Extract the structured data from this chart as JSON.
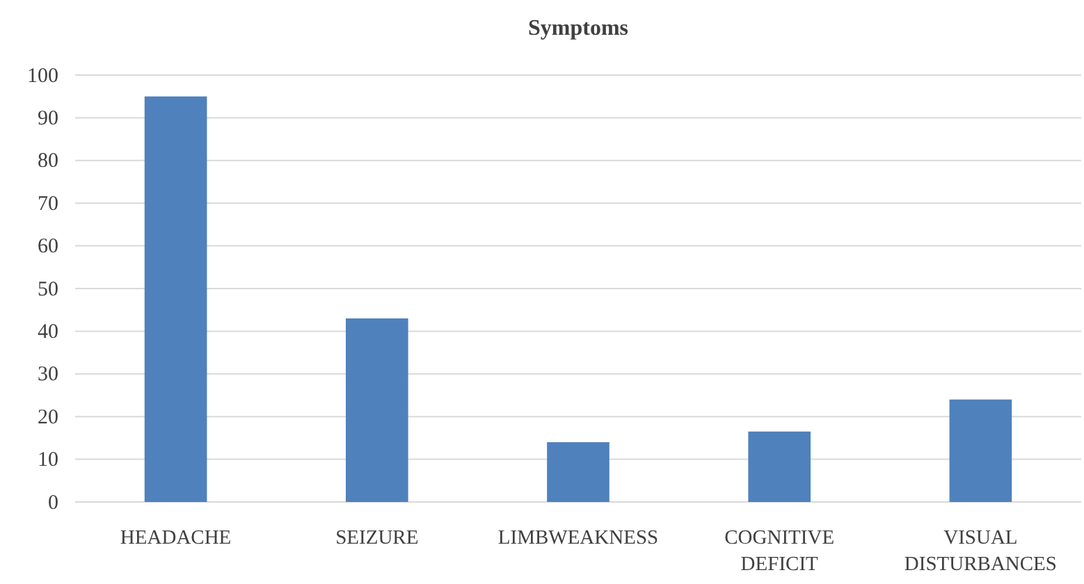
{
  "chart_data": {
    "type": "bar",
    "title": "Symptoms",
    "categories": [
      "HEADACHE",
      "SEIZURE",
      "LIMBWEAKNESS",
      "COGNITIVE DEFICIT",
      "VISUAL DISTURBANCES"
    ],
    "values": [
      95,
      43,
      14,
      16.5,
      24
    ],
    "color": "#4f81bd",
    "ylim": [
      0,
      100
    ],
    "yticks": [
      0,
      10,
      20,
      30,
      40,
      50,
      60,
      70,
      80,
      90,
      100
    ],
    "grid": "y"
  }
}
